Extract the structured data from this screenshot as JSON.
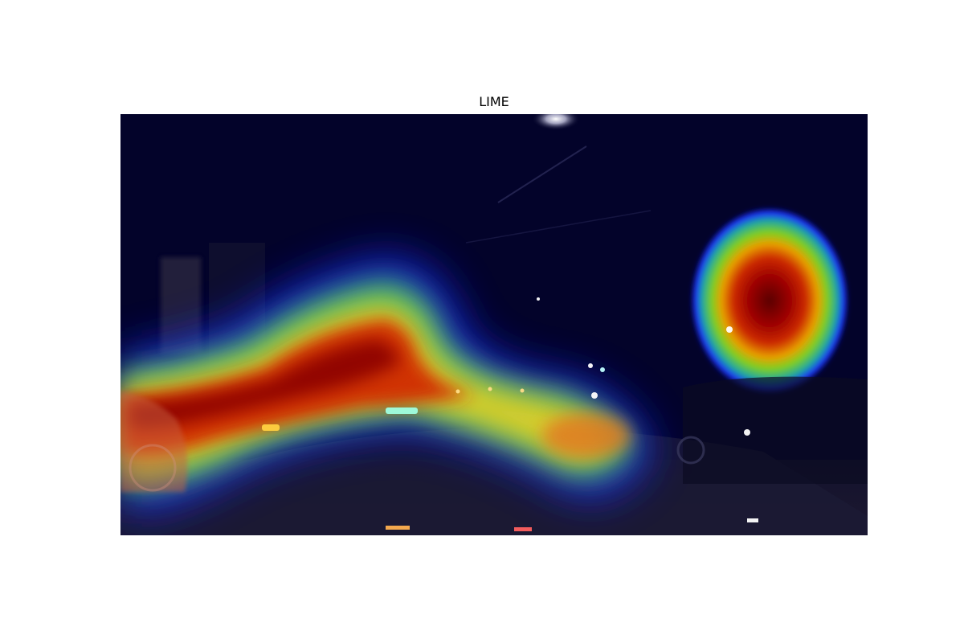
{
  "figure": {
    "title": "LIME"
  },
  "image": {
    "scene": "night-street-with-heatmap-overlay",
    "colormap": "jet",
    "colors": {
      "background": "#ffffff",
      "base_dark": "#04042a",
      "heat_low": "#1a1aff",
      "heat_mid": "#22cc44",
      "heat_high": "#ffe020",
      "heat_peak": "#8b0000"
    }
  }
}
